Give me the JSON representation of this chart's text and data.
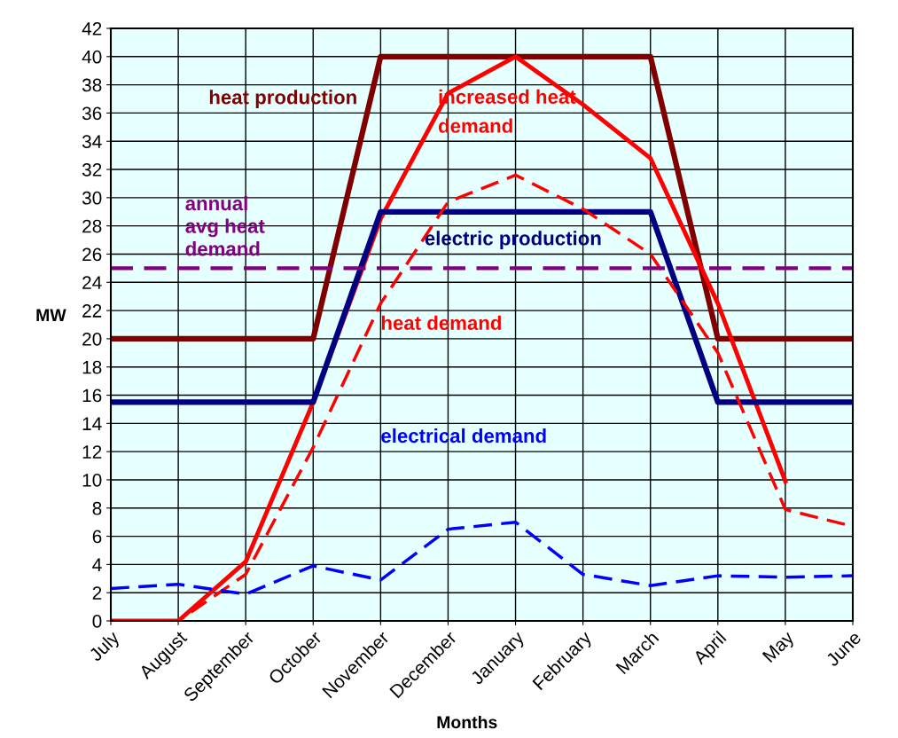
{
  "chart_data": {
    "type": "line",
    "xlabel": "Months",
    "ylabel": "MW",
    "categories": [
      "July",
      "August",
      "September",
      "October",
      "November",
      "December",
      "January",
      "February",
      "March",
      "April",
      "May",
      "June"
    ],
    "series": [
      {
        "name": "heat production",
        "color": "#800000",
        "line_style": "solid",
        "values": [
          20,
          20,
          20,
          20,
          40,
          40,
          40,
          40,
          40,
          20,
          20,
          20
        ]
      },
      {
        "name": "increased heat demand",
        "color": "#ff0000",
        "line_style": "solid",
        "values": [
          0,
          0,
          4.2,
          15.5,
          28.5,
          37.4,
          40,
          36.6,
          32.8,
          22.5,
          9.9,
          null
        ]
      },
      {
        "name": "electric production",
        "color": "#000080",
        "line_style": "solid",
        "values": [
          15.5,
          15.5,
          15.5,
          15.5,
          29,
          29,
          29,
          29,
          29,
          15.5,
          15.5,
          15.5
        ]
      },
      {
        "name": "heat demand",
        "color": "#ff0000",
        "line_style": "dashed",
        "values": [
          0,
          0,
          3.3,
          12.3,
          22.5,
          29.7,
          31.6,
          29.2,
          26,
          19,
          7.9,
          6.7
        ]
      },
      {
        "name": "electrical demand",
        "color": "#0000ff",
        "line_style": "dashed",
        "values": [
          2.3,
          2.6,
          1.9,
          3.9,
          2.9,
          6.5,
          7,
          3.3,
          2.5,
          3.2,
          3.1,
          3.2
        ]
      }
    ],
    "ref_lines": [
      {
        "axis": "y",
        "value": 25,
        "label": "annual\navg heat\ndemand",
        "color": "#800080",
        "line_style": "dashed"
      }
    ],
    "ylim": [
      0,
      42
    ],
    "yticks": [
      0,
      2,
      4,
      6,
      8,
      10,
      12,
      14,
      16,
      18,
      20,
      22,
      24,
      26,
      28,
      30,
      32,
      34,
      36,
      38,
      40,
      42
    ],
    "grid": true,
    "legend": false,
    "marker": "none"
  }
}
